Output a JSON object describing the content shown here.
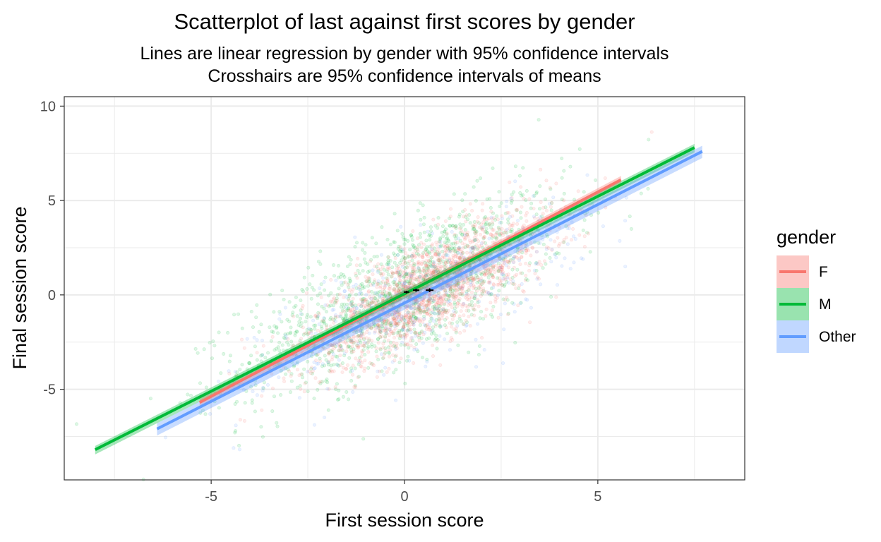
{
  "chart_data": {
    "type": "scatter",
    "title": "Scatterplot of last against first scores by gender",
    "subtitle_lines": [
      "Lines are linear regression by gender with 95% confidence intervals",
      "Crosshairs are 95% confidence intervals of means"
    ],
    "xlabel": "First session score",
    "ylabel": "Final session score",
    "xlim": [
      -8.8,
      8.8
    ],
    "ylim": [
      -9.8,
      10.5
    ],
    "x_ticks": [
      -5,
      0,
      5
    ],
    "y_ticks": [
      -5,
      0,
      5,
      10
    ],
    "grid": true,
    "legend": {
      "title": "gender",
      "position": "right"
    },
    "series": [
      {
        "name": "F",
        "color": "#F8766D",
        "points": {
          "count": 1800,
          "mean_x": 0.6,
          "mean_y": 0.25,
          "sd_x": 1.6,
          "sd_y": 2.0,
          "correlation": 0.78
        },
        "regression": {
          "x_start": -5.3,
          "x_end": 5.6,
          "y_start": -5.7,
          "y_end": 6.1,
          "ci_halfwidth": 0.2
        },
        "mean_crosshair": {
          "x": 0.65,
          "y": 0.25,
          "x_ci": 0.1,
          "y_ci": 0.1
        }
      },
      {
        "name": "M",
        "color": "#00BA38",
        "points": {
          "count": 1400,
          "mean_x": 0.0,
          "mean_y": 0.1,
          "sd_x": 2.1,
          "sd_y": 2.6,
          "correlation": 0.74
        },
        "regression": {
          "x_start": -8.0,
          "x_end": 7.5,
          "y_start": -8.2,
          "y_end": 7.8,
          "ci_halfwidth": 0.2
        },
        "mean_crosshair": {
          "x": 0.05,
          "y": 0.15,
          "x_ci": 0.07,
          "y_ci": 0.07
        }
      },
      {
        "name": "Other",
        "color": "#619CFF",
        "points": {
          "count": 450,
          "mean_x": 0.5,
          "mean_y": 0.0,
          "sd_x": 2.0,
          "sd_y": 2.4,
          "correlation": 0.76
        },
        "regression": {
          "x_start": -6.4,
          "x_end": 7.7,
          "y_start": -7.1,
          "y_end": 7.6,
          "ci_halfwidth": 0.3
        },
        "mean_crosshair": {
          "x": 0.3,
          "y": 0.25,
          "x_ci": 0.08,
          "y_ci": 0.08
        }
      }
    ]
  }
}
